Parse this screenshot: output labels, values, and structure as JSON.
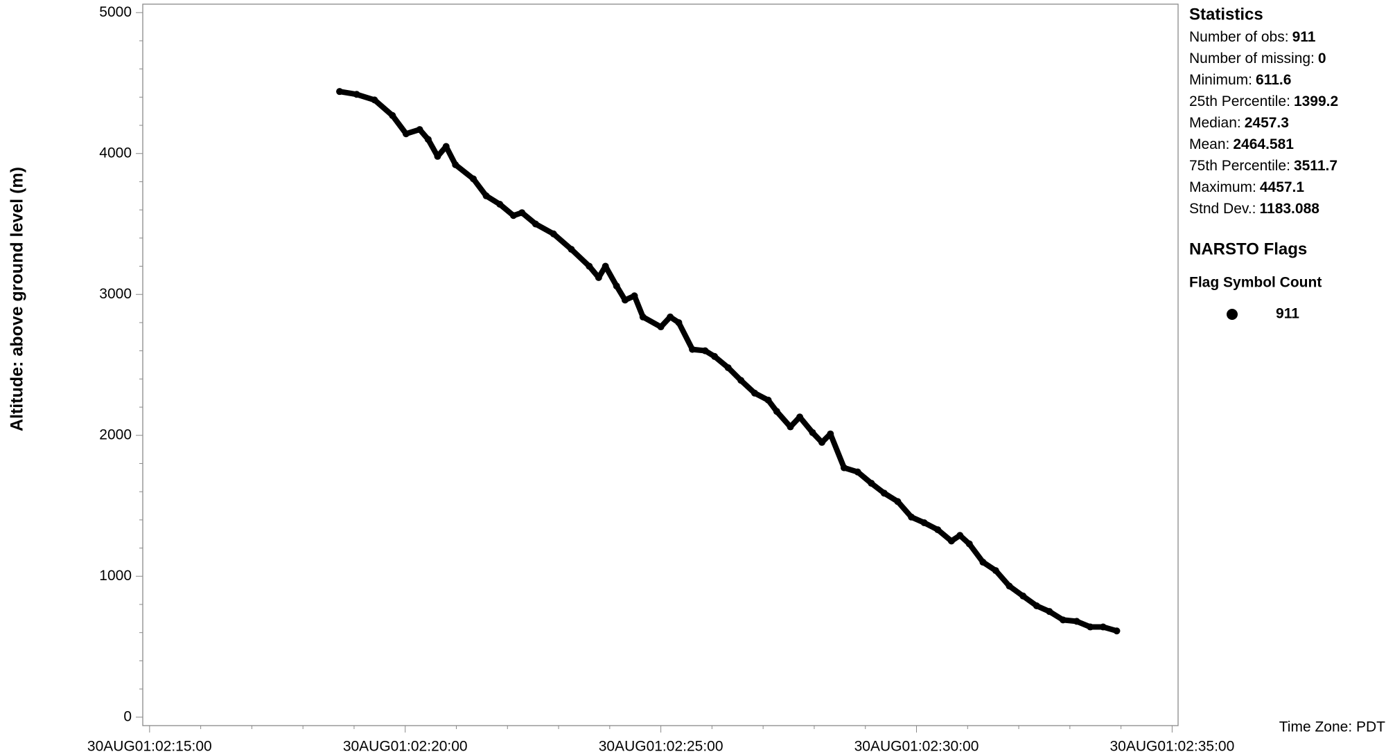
{
  "chart_data": {
    "type": "scatter",
    "y_label": "Altitude: above ground level (m)",
    "time_zone": "Time Zone: PDT",
    "color": "#000000",
    "xlim": [
      "30AUG01:02:14:52",
      "30AUG01:02:35:07"
    ],
    "xticks": [
      "30AUG01:02:15:00",
      "30AUG01:02:20:00",
      "30AUG01:02:25:00",
      "30AUG01:02:30:00",
      "30AUG01:02:35:00"
    ],
    "ylim": [
      -60,
      5060
    ],
    "yticks": [
      0,
      1000,
      2000,
      3000,
      4000,
      5000
    ],
    "x": [
      "30AUG01:02:18:43",
      "30AUG01:02:19:03",
      "30AUG01:02:19:24",
      "30AUG01:02:19:45",
      "30AUG01:02:20:01",
      "30AUG01:02:20:17",
      "30AUG01:02:20:27",
      "30AUG01:02:20:38",
      "30AUG01:02:20:48",
      "30AUG01:02:20:59",
      "30AUG01:02:21:20",
      "30AUG01:02:21:35",
      "30AUG01:02:21:51",
      "30AUG01:02:22:07",
      "30AUG01:02:22:17",
      "30AUG01:02:22:33",
      "30AUG01:02:22:54",
      "30AUG01:02:23:15",
      "30AUG01:02:23:36",
      "30AUG01:02:23:47",
      "30AUG01:02:23:55",
      "30AUG01:02:24:08",
      "30AUG01:02:24:18",
      "30AUG01:02:24:29",
      "30AUG01:02:24:39",
      "30AUG01:02:25:00",
      "30AUG01:02:25:11",
      "30AUG01:02:25:21",
      "30AUG01:02:25:37",
      "30AUG01:02:25:52",
      "30AUG01:02:26:03",
      "30AUG01:02:26:19",
      "30AUG01:02:26:34",
      "30AUG01:02:26:50",
      "30AUG01:02:27:06",
      "30AUG01:02:27:16",
      "30AUG01:02:27:32",
      "30AUG01:02:27:43",
      "30AUG01:02:27:58",
      "30AUG01:02:28:09",
      "30AUG01:02:28:19",
      "30AUG01:02:28:35",
      "30AUG01:02:28:51",
      "30AUG01:02:29:07",
      "30AUG01:02:29:22",
      "30AUG01:02:29:38",
      "30AUG01:02:29:54",
      "30AUG01:02:30:09",
      "30AUG01:02:30:25",
      "30AUG01:02:30:41",
      "30AUG01:02:30:51",
      "30AUG01:02:31:02",
      "30AUG01:02:31:18",
      "30AUG01:02:31:33",
      "30AUG01:02:31:49",
      "30AUG01:02:32:05",
      "30AUG01:02:32:21",
      "30AUG01:02:32:36",
      "30AUG01:02:32:52",
      "30AUG01:02:33:08",
      "30AUG01:02:33:24",
      "30AUG01:02:33:39",
      "30AUG01:02:33:55"
    ],
    "values": [
      4440,
      4420,
      4380,
      4270,
      4140,
      4170,
      4100,
      3980,
      4050,
      3920,
      3820,
      3700,
      3640,
      3560,
      3580,
      3500,
      3430,
      3320,
      3200,
      3120,
      3200,
      3060,
      2960,
      2990,
      2840,
      2770,
      2840,
      2800,
      2610,
      2600,
      2560,
      2480,
      2390,
      2300,
      2250,
      2170,
      2060,
      2130,
      2020,
      1950,
      2010,
      1770,
      1740,
      1660,
      1590,
      1530,
      1420,
      1380,
      1330,
      1250,
      1290,
      1230,
      1100,
      1040,
      930,
      860,
      790,
      750,
      690,
      680,
      640,
      640,
      612
    ],
    "statistics": {
      "title": "Statistics",
      "rows": [
        {
          "label": "Number of obs:",
          "value": 911
        },
        {
          "label": "Number of missing:",
          "value": 0
        },
        {
          "label": "Minimum:",
          "value": 611.6
        },
        {
          "label": "25th Percentile:",
          "value": 1399.2
        },
        {
          "label": "Median:",
          "value": 2457.3
        },
        {
          "label": "Mean:",
          "value": 2464.581
        },
        {
          "label": "75th Percentile:",
          "value": 3511.7
        },
        {
          "label": "Maximum:",
          "value": 4457.1
        },
        {
          "label": "Stnd Dev.:",
          "value": 1183.088
        }
      ]
    },
    "flags": {
      "title": "NARSTO Flags",
      "header": "Flag Symbol Count",
      "count": 911
    }
  }
}
